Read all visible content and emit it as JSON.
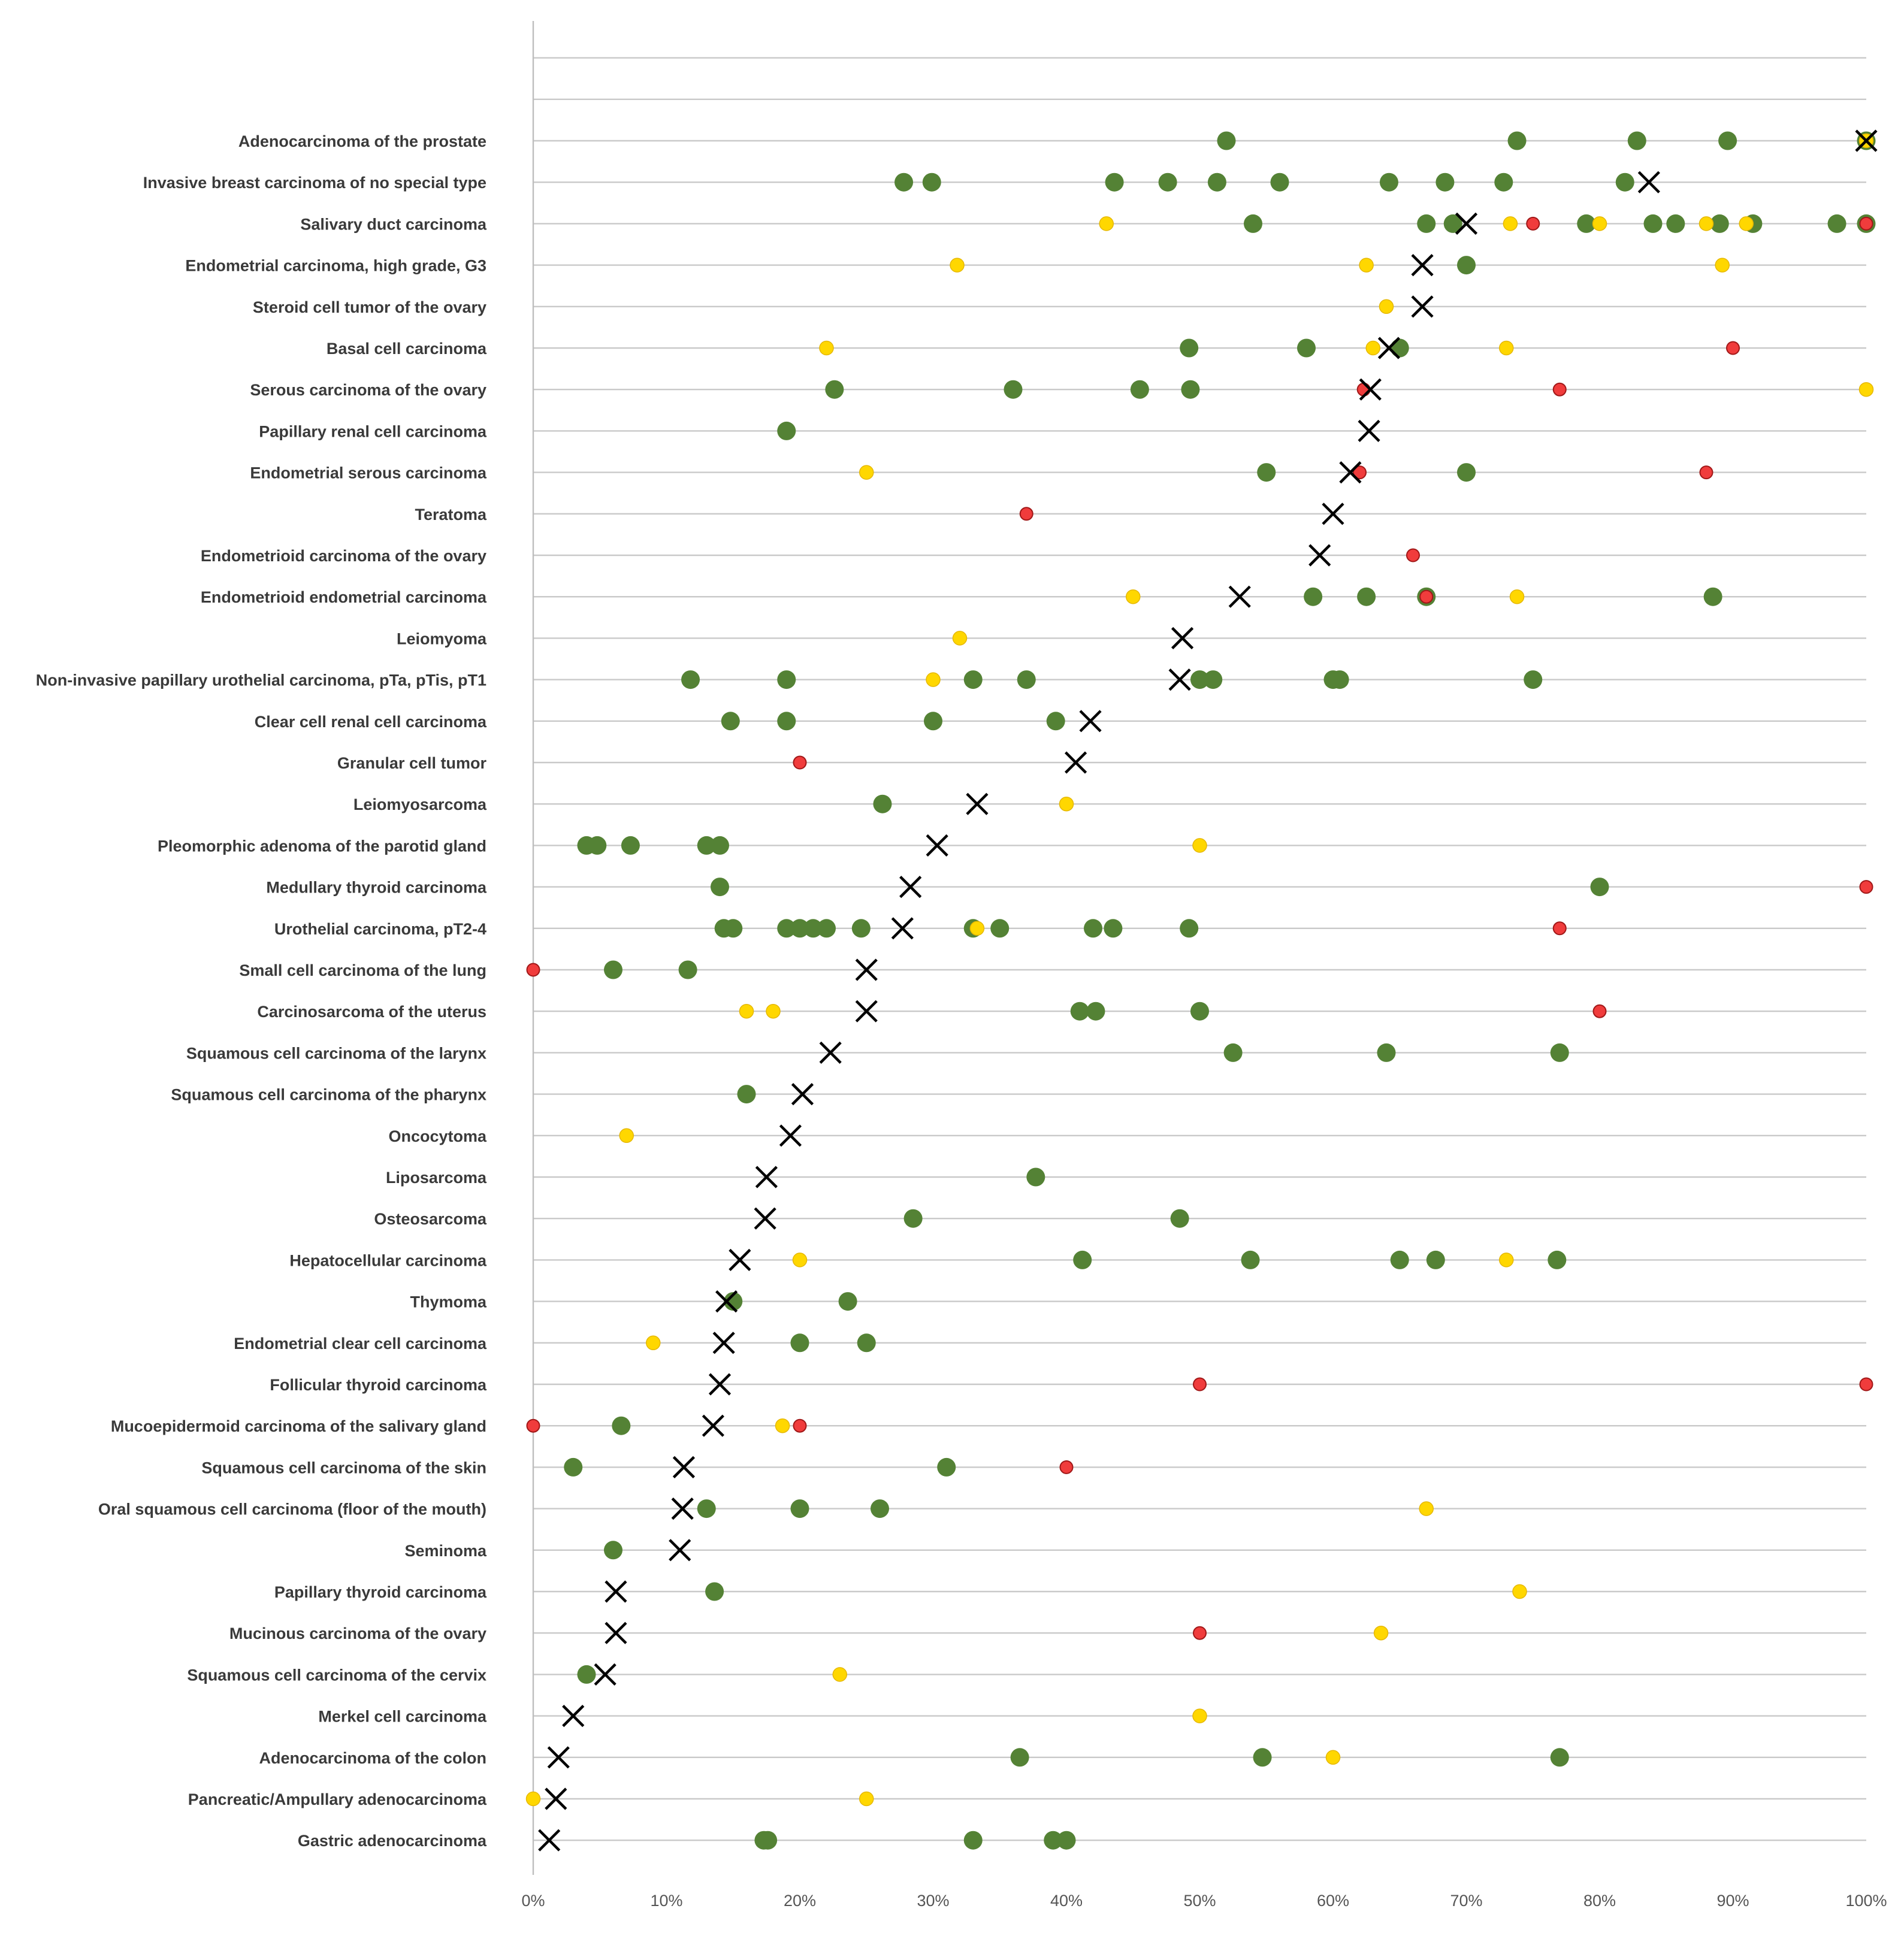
{
  "chart_data": {
    "type": "scatter",
    "title": "",
    "xlabel": "",
    "ylabel": "",
    "xlim": [
      0,
      100
    ],
    "x_tick_labels": [
      "0%",
      "10%",
      "20%",
      "30%",
      "40%",
      "50%",
      "60%",
      "70%",
      "80%",
      "90%",
      "100%"
    ],
    "legend": [],
    "marker_colors": {
      "green": "#548235",
      "yellow": "#ffd700",
      "red": "#f03c3c",
      "mean": "#000000"
    },
    "categories": [
      "Adenocarcinoma of the prostate",
      "Invasive breast carcinoma of no special type",
      "Salivary duct carcinoma",
      "Endometrial carcinoma, high grade, G3",
      "Steroid cell tumor of the ovary",
      "Basal cell carcinoma",
      "Serous carcinoma of the ovary",
      "Papillary renal cell carcinoma",
      "Endometrial serous carcinoma",
      "Teratoma",
      "Endometrioid carcinoma of the ovary",
      "Endometrioid endometrial carcinoma",
      "Leiomyoma",
      "Non-invasive papillary urothelial carcinoma, pTa, pTis, pT1",
      "Clear cell renal cell carcinoma",
      "Granular cell tumor",
      "Leiomyosarcoma",
      "Pleomorphic adenoma of the parotid gland",
      "Medullary thyroid carcinoma",
      "Urothelial carcinoma, pT2-4",
      "Small cell carcinoma of the lung",
      "Carcinosarcoma of the uterus",
      "Squamous cell carcinoma of the larynx",
      "Squamous cell carcinoma of the pharynx",
      "Oncocytoma",
      "Liposarcoma",
      "Osteosarcoma",
      "Hepatocellular carcinoma",
      "Thymoma",
      "Endometrial clear cell carcinoma",
      "Follicular thyroid carcinoma",
      "Mucoepidermoid carcinoma of the salivary gland",
      "Squamous cell carcinoma of the skin",
      "Oral squamous cell carcinoma (floor of the mouth)",
      "Seminoma",
      "Papillary thyroid carcinoma",
      "Mucinous carcinoma of the ovary",
      "Squamous cell carcinoma of the cervix",
      "Merkel cell carcinoma",
      "Adenocarcinoma of the colon",
      "Pancreatic/Ampullary adenocarcinoma",
      "Gastric adenocarcinoma"
    ],
    "series": [
      {
        "name": "green",
        "values": [
          [
            52,
            73.8,
            82.8,
            89.6,
            100
          ],
          [
            27.8,
            29.9,
            43.6,
            47.6,
            51.3,
            56,
            64.2,
            68.4,
            72.8,
            81.9
          ],
          [
            54,
            67,
            69,
            79,
            84,
            85.7,
            89,
            91.5,
            97.8,
            100
          ],
          [
            70
          ],
          [],
          [
            49.2,
            58,
            65
          ],
          [
            22.6,
            36,
            45.5,
            49.3
          ],
          [
            19
          ],
          [
            55,
            70
          ],
          [],
          [],
          [
            58.5,
            62.5,
            67,
            88.5
          ],
          [],
          [
            11.8,
            19,
            33,
            37,
            50,
            51,
            60,
            60.5,
            75
          ],
          [
            14.8,
            19,
            30,
            39.2
          ],
          [],
          [
            26.2
          ],
          [
            4,
            4.8,
            7.3,
            13,
            14
          ],
          [
            14,
            80
          ],
          [
            14.3,
            15,
            19,
            20,
            21,
            22,
            24.6,
            33,
            35,
            42,
            43.5,
            49.2
          ],
          [
            6,
            11.6
          ],
          [
            41,
            42.2,
            50
          ],
          [
            52.5,
            64,
            77
          ],
          [
            16
          ],
          [],
          [
            37.7
          ],
          [
            28.5,
            48.5
          ],
          [
            41.2,
            53.8,
            65,
            67.7,
            76.8
          ],
          [
            15,
            23.6
          ],
          [
            20,
            25
          ],
          [],
          [
            6.6
          ],
          [
            3,
            31
          ],
          [
            13,
            20,
            26
          ],
          [
            6
          ],
          [
            13.6
          ],
          [],
          [
            4
          ],
          [],
          [
            36.5,
            54.7,
            77
          ],
          [],
          [
            17.3,
            17.6,
            33,
            39,
            40
          ]
        ]
      },
      {
        "name": "yellow",
        "values": [
          [
            100
          ],
          [],
          [
            43,
            73.3,
            80,
            88,
            91
          ],
          [
            31.8,
            62.5,
            89.2
          ],
          [
            64
          ],
          [
            22,
            63,
            73
          ],
          [
            100
          ],
          [],
          [
            25
          ],
          [],
          [],
          [
            45,
            73.8
          ],
          [
            32
          ],
          [
            30
          ],
          [],
          [],
          [
            40
          ],
          [
            50
          ],
          [],
          [
            33.3
          ],
          [],
          [
            16,
            18
          ],
          [],
          [],
          [
            7
          ],
          [],
          [],
          [
            20,
            73
          ],
          [],
          [
            9
          ],
          [],
          [
            18.7
          ],
          [],
          [
            67
          ],
          [],
          [
            74
          ],
          [
            63.6
          ],
          [
            23
          ],
          [
            50
          ],
          [
            60
          ],
          [
            0,
            25
          ],
          []
        ]
      },
      {
        "name": "red",
        "values": [
          [],
          [],
          [
            75,
            100
          ],
          [],
          [],
          [
            90
          ],
          [
            62.3,
            77
          ],
          [],
          [
            62,
            88
          ],
          [
            37
          ],
          [
            66
          ],
          [
            67
          ],
          [],
          [],
          [],
          [
            20
          ],
          [],
          [],
          [
            100
          ],
          [
            77
          ],
          [
            0
          ],
          [
            80
          ],
          [],
          [],
          [],
          [],
          [],
          [],
          [],
          [],
          [
            50,
            100
          ],
          [
            0,
            20
          ],
          [
            40
          ],
          [],
          [],
          [],
          [
            50
          ],
          [],
          [],
          [],
          [],
          []
        ]
      },
      {
        "name": "mean",
        "values": [
          100,
          83.7,
          70,
          66.7,
          66.7,
          64.2,
          62.8,
          62.7,
          61.3,
          60,
          59,
          53,
          48.7,
          48.5,
          41.8,
          40.7,
          33.3,
          30.3,
          28.3,
          27.7,
          25,
          25,
          22.3,
          20.2,
          19.3,
          17.5,
          17.4,
          15.5,
          14.5,
          14.3,
          14,
          13.5,
          11.3,
          11.2,
          11,
          6.2,
          6.2,
          5.4,
          3,
          1.9,
          1.7,
          1.2
        ]
      }
    ]
  }
}
